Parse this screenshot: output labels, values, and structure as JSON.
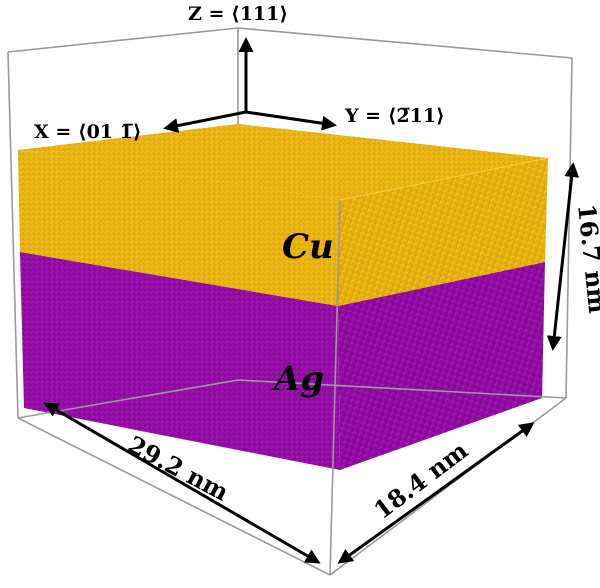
{
  "axes": {
    "z_label": "Z = ⟨111⟩",
    "x_label": "X = ⟨01 1̅⟩",
    "y_label": "Y = ⟨2̅11⟩"
  },
  "layers": {
    "top": {
      "label": "Cu",
      "color": "#E8B000"
    },
    "bottom": {
      "label": "Ag",
      "color": "#9A0DA8"
    }
  },
  "dimensions": {
    "length": "29.2 nm",
    "width": "18.4 nm",
    "height": "16.7 nm"
  },
  "colors": {
    "box_edge": "#9a9a9a",
    "arrow": "#000000"
  }
}
